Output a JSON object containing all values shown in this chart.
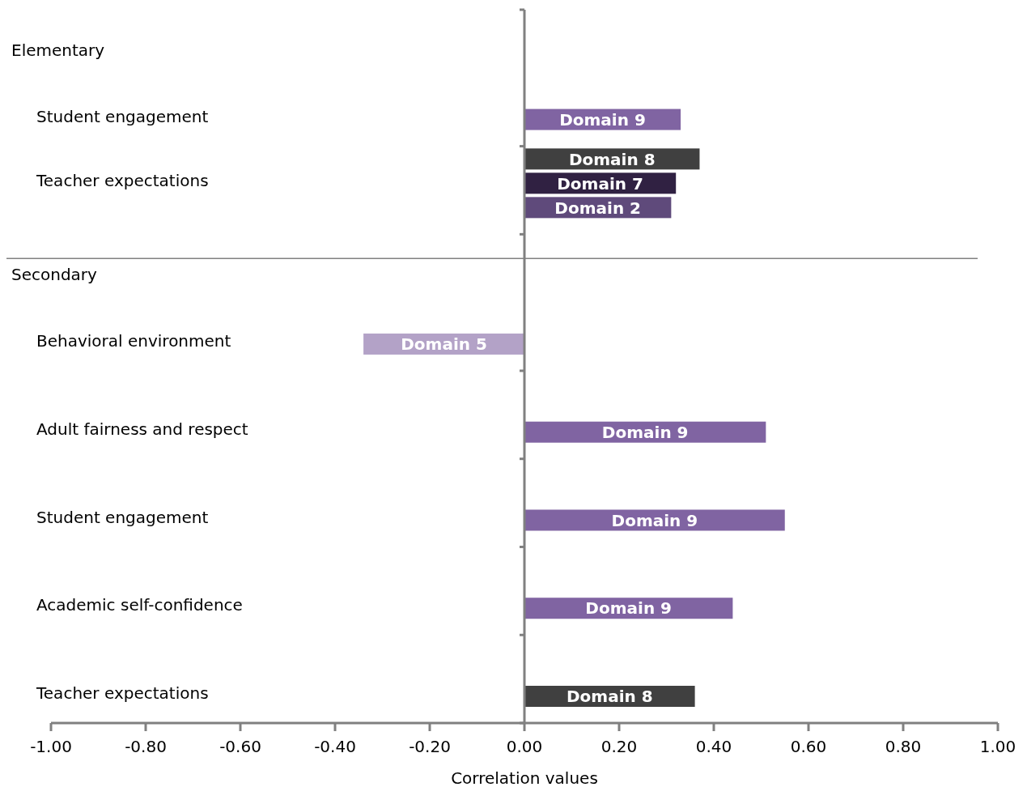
{
  "chart_data": {
    "type": "bar",
    "orientation": "horizontal",
    "xlabel": "Correlation values",
    "categories": [
      "Elementary",
      "Student engagement",
      "Teacher expectations",
      "Secondary",
      "Behavioral environment",
      "Adult fairness and respect",
      "Student engagement",
      "Academic self-confidence",
      "Teacher expectations"
    ],
    "series": [
      {
        "name": "Domain 8",
        "color": "#404040",
        "values": [
          null,
          null,
          0.37,
          null,
          null,
          null,
          null,
          null,
          0.36
        ]
      },
      {
        "name": "Domain 7",
        "color": "#302142",
        "values": [
          null,
          null,
          0.32,
          null,
          null,
          null,
          null,
          null,
          null
        ]
      },
      {
        "name": "Domain 2",
        "color": "#5f4a7b",
        "values": [
          null,
          null,
          0.31,
          null,
          null,
          null,
          null,
          null,
          null
        ]
      },
      {
        "name": "Domain 5",
        "color": "#b3a2c7",
        "values": [
          null,
          null,
          null,
          null,
          -0.34,
          null,
          null,
          null,
          null
        ]
      },
      {
        "name": "Domain 9",
        "color": "#8064a2",
        "values": [
          null,
          0.33,
          null,
          null,
          null,
          0.51,
          0.55,
          0.44,
          null
        ]
      }
    ],
    "xlim": [
      -1,
      1
    ],
    "xticks": [
      {
        "value": -1,
        "label": "-1.00"
      },
      {
        "value": -0.8,
        "label": "-0.80"
      },
      {
        "value": -0.6,
        "label": "-0.60"
      },
      {
        "value": -0.4,
        "label": "-0.40"
      },
      {
        "value": -0.2,
        "label": "-0.20"
      },
      {
        "value": 0,
        "label": "0.00"
      },
      {
        "value": 0.2,
        "label": "0.20"
      },
      {
        "value": 0.4,
        "label": "0.40"
      },
      {
        "value": 0.6,
        "label": "0.60"
      },
      {
        "value": 0.8,
        "label": "0.80"
      },
      {
        "value": 1,
        "label": "1.00"
      }
    ],
    "ref_lines": [
      {
        "axis": "y",
        "value": "Secondary",
        "color": "#808080"
      }
    ],
    "legend": false
  }
}
